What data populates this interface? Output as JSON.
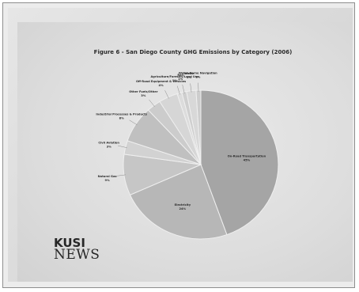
{
  "chart_data": {
    "type": "pie",
    "title": "Figure 6 - San Diego County GHG Emissions by Category (2006)",
    "series": [
      {
        "name": "On-Road Transportation",
        "value": 45,
        "color": "#a5a5a5"
      },
      {
        "name": "Electricity",
        "value": 24,
        "color": "#b7b7b7"
      },
      {
        "name": "Natural Gas",
        "value": 9,
        "color": "#c6c6c6"
      },
      {
        "name": "Civil Aviation",
        "value": 3,
        "color": "#d2d2d2"
      },
      {
        "name": "Industrial Processes & Products",
        "value": 8,
        "color": "#c0c0c0"
      },
      {
        "name": "Other Fuels/Other",
        "value": 3,
        "color": "#cccccc"
      },
      {
        "name": "Off-Road Equipment & Vehicles",
        "value": 4,
        "color": "#d6d6d6"
      },
      {
        "name": "Agriculture/Forestry/Land Use",
        "value": 1,
        "color": "#dcdcdc"
      },
      {
        "name": "Rail",
        "value": 1,
        "color": "#cfcfcf"
      },
      {
        "name": "Waste",
        "value": 2,
        "color": "#d8d8d8"
      },
      {
        "name": "Water-Borne Navigation",
        "value": 1,
        "color": "#cdcdcd"
      }
    ],
    "legend": "none"
  },
  "branding": {
    "call_sign": "KUSI",
    "news": "NEWS"
  }
}
